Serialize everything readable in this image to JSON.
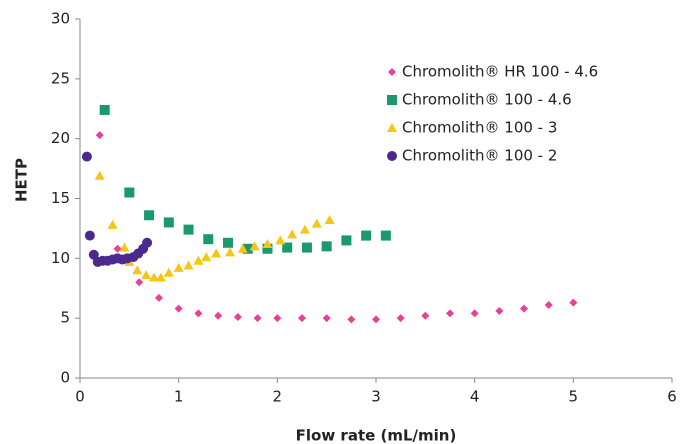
{
  "chart_data": {
    "type": "scatter",
    "x_label": "Flow rate (mL/min)",
    "y_label": "HETP",
    "xlim": [
      0,
      6
    ],
    "xticks": [
      0,
      1,
      2,
      3,
      4,
      5,
      6
    ],
    "ylim": [
      0,
      30
    ],
    "yticks": [
      0,
      5,
      10,
      15,
      20,
      25,
      30
    ],
    "grid": false,
    "legend": "upper right",
    "series": [
      {
        "name": "Chromolith® HR 100 - 4.6",
        "color": "#e8409a",
        "marker": "diamond",
        "x": [
          0.2,
          0.38,
          0.6,
          0.8,
          1.0,
          1.2,
          1.4,
          1.6,
          1.8,
          2.0,
          2.25,
          2.5,
          2.75,
          3.0,
          3.25,
          3.5,
          3.75,
          4.0,
          4.25,
          4.5,
          4.75,
          5.0
        ],
        "values": [
          20.3,
          10.8,
          8.0,
          6.7,
          5.8,
          5.4,
          5.2,
          5.1,
          5.0,
          5.0,
          5.0,
          5.0,
          4.9,
          4.9,
          5.0,
          5.2,
          5.4,
          5.4,
          5.6,
          5.8,
          6.1,
          6.3
        ]
      },
      {
        "name": "Chromolith® 100 - 4.6",
        "color": "#1a9a6a",
        "marker": "square",
        "x": [
          0.25,
          0.5,
          0.7,
          0.9,
          1.1,
          1.3,
          1.5,
          1.7,
          1.9,
          2.1,
          2.3,
          2.5,
          2.7,
          2.9,
          3.1
        ],
        "values": [
          22.4,
          15.5,
          13.6,
          13.0,
          12.4,
          11.6,
          11.3,
          10.8,
          10.8,
          10.9,
          10.9,
          11.0,
          11.5,
          11.9,
          11.9
        ]
      },
      {
        "name": "Chromolith® 100 - 3",
        "color": "#f5c518",
        "marker": "triangle",
        "x": [
          0.2,
          0.33,
          0.45,
          0.5,
          0.58,
          0.67,
          0.75,
          0.82,
          0.9,
          1.0,
          1.1,
          1.2,
          1.28,
          1.38,
          1.52,
          1.65,
          1.77,
          1.9,
          2.03,
          2.15,
          2.28,
          2.4,
          2.53
        ],
        "values": [
          16.9,
          12.8,
          10.9,
          9.7,
          9.0,
          8.6,
          8.4,
          8.4,
          8.8,
          9.2,
          9.4,
          9.8,
          10.1,
          10.4,
          10.5,
          10.8,
          11.0,
          11.2,
          11.5,
          12.0,
          12.4,
          12.9,
          13.2
        ]
      },
      {
        "name": "Chromolith® 100 - 2",
        "color": "#4a2a8c",
        "marker": "circle",
        "x": [
          0.07,
          0.1,
          0.14,
          0.18,
          0.23,
          0.28,
          0.33,
          0.38,
          0.43,
          0.48,
          0.54,
          0.59,
          0.64,
          0.68
        ],
        "values": [
          18.5,
          11.9,
          10.3,
          9.7,
          9.8,
          9.8,
          9.9,
          10.0,
          9.9,
          10.0,
          10.1,
          10.4,
          10.8,
          11.3
        ]
      }
    ]
  }
}
